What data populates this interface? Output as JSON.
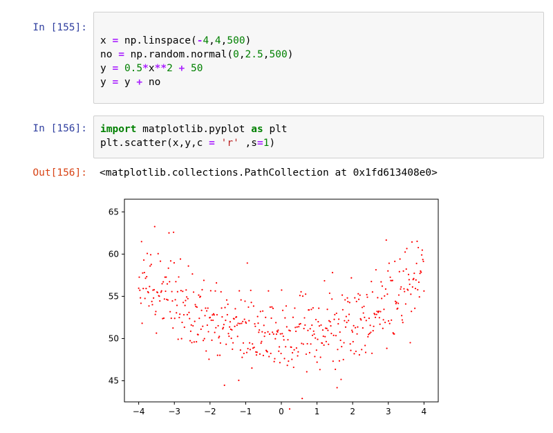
{
  "cells": [
    {
      "prompt": "In [155]:",
      "lines": [
        [
          {
            "t": ""
          }
        ],
        [
          {
            "t": "x "
          },
          {
            "t": "=",
            "c": "o"
          },
          {
            "t": " np.linspace("
          },
          {
            "t": "-",
            "c": "o"
          },
          {
            "t": "4",
            "c": "m"
          },
          {
            "t": ","
          },
          {
            "t": "4",
            "c": "m"
          },
          {
            "t": ","
          },
          {
            "t": "500",
            "c": "m"
          },
          {
            "t": ")"
          }
        ],
        [
          {
            "t": "no "
          },
          {
            "t": "=",
            "c": "o"
          },
          {
            "t": " np.random.normal("
          },
          {
            "t": "0",
            "c": "m"
          },
          {
            "t": ","
          },
          {
            "t": "2.5",
            "c": "m"
          },
          {
            "t": ","
          },
          {
            "t": "500",
            "c": "m"
          },
          {
            "t": ")"
          }
        ],
        [
          {
            "t": "y "
          },
          {
            "t": "=",
            "c": "o"
          },
          {
            "t": " "
          },
          {
            "t": "0.5",
            "c": "m"
          },
          {
            "t": "*",
            "c": "o"
          },
          {
            "t": "x"
          },
          {
            "t": "**",
            "c": "o"
          },
          {
            "t": "2",
            "c": "m"
          },
          {
            "t": " "
          },
          {
            "t": "+",
            "c": "o"
          },
          {
            "t": " "
          },
          {
            "t": "50",
            "c": "m"
          }
        ],
        [
          {
            "t": "y "
          },
          {
            "t": "=",
            "c": "o"
          },
          {
            "t": " y "
          },
          {
            "t": "+",
            "c": "o"
          },
          {
            "t": " no"
          }
        ]
      ]
    },
    {
      "prompt": "In [156]:",
      "lines": [
        [
          {
            "t": "import",
            "c": "k"
          },
          {
            "t": " matplotlib.pyplot "
          },
          {
            "t": "as",
            "c": "k"
          },
          {
            "t": " plt"
          }
        ],
        [
          {
            "t": "plt.scatter(x,y,c "
          },
          {
            "t": "=",
            "c": "o"
          },
          {
            "t": " "
          },
          {
            "t": "'r'",
            "c": "s"
          },
          {
            "t": " ,s"
          },
          {
            "t": "=",
            "c": "o"
          },
          {
            "t": "1",
            "c": "m"
          },
          {
            "t": ")"
          }
        ]
      ]
    }
  ],
  "output": {
    "prompt": "Out[156]:",
    "text": "<matplotlib.collections.PathCollection at 0x1fd613408e0>"
  },
  "colors": {
    "prompt_in": "#303f9f",
    "prompt_out": "#d84315",
    "point": "#ff0000"
  },
  "chart_data": {
    "type": "scatter",
    "n_points": 500,
    "x_range": [
      -4,
      4
    ],
    "equation": "y = 0.5*x**2 + 50 + normal(0, 2.5)",
    "xlim": [
      -4.4,
      4.4
    ],
    "ylim": [
      42.5,
      66.5
    ],
    "xticks": [
      -4,
      -3,
      -2,
      -1,
      0,
      1,
      2,
      3,
      4
    ],
    "yticks": [
      45,
      50,
      55,
      60,
      65
    ],
    "xtick_labels": [
      "−4",
      "−3",
      "−2",
      "−1",
      "0",
      "1",
      "2",
      "3",
      "4"
    ],
    "ytick_labels": [
      "45",
      "50",
      "55",
      "60",
      "65"
    ],
    "grid": false,
    "color": "r",
    "marker_size": 1
  }
}
